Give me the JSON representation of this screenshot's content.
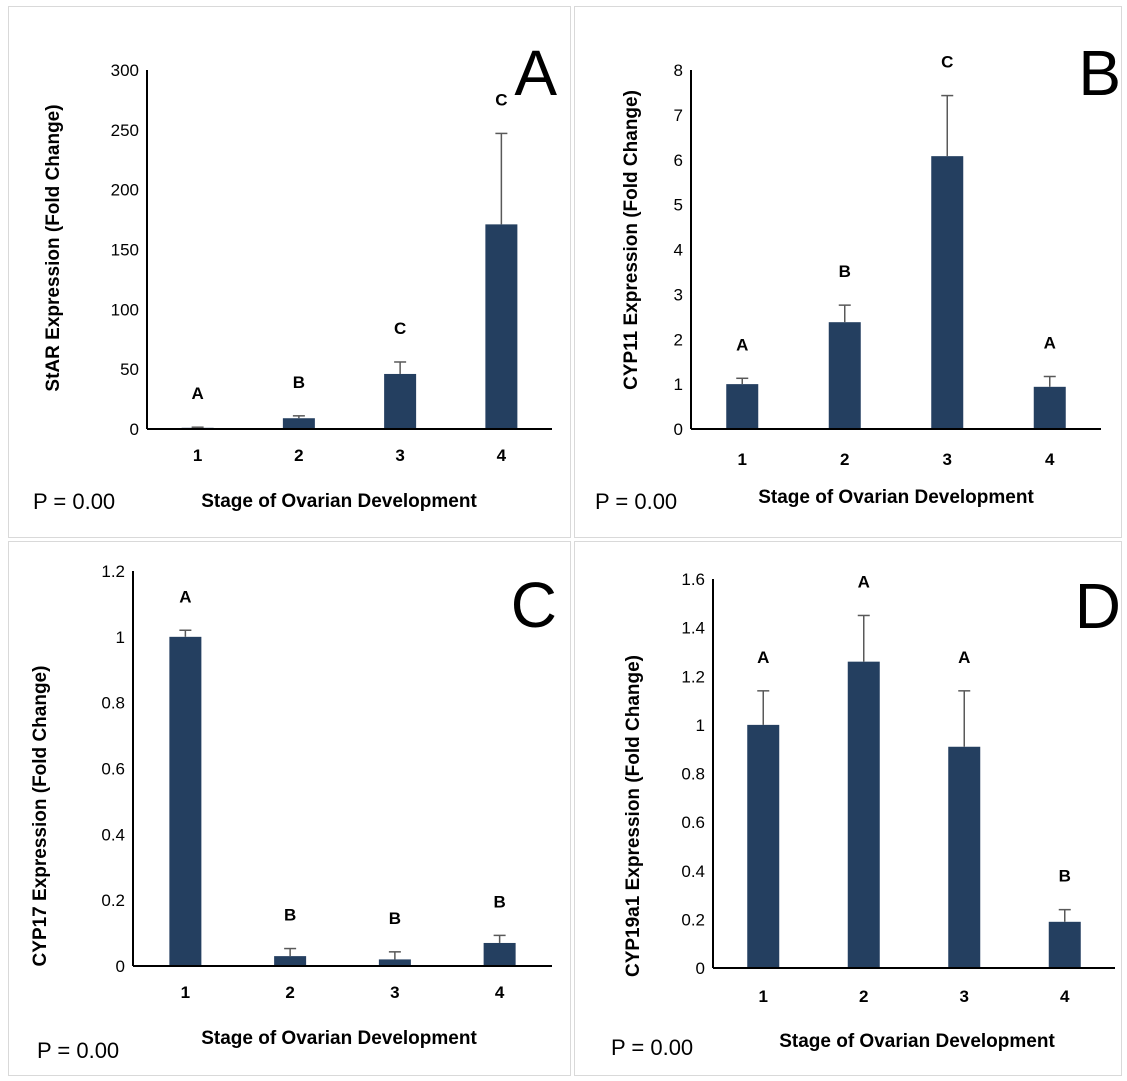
{
  "colors": {
    "bar": "#243f60",
    "axis": "#000000",
    "error": "#595959"
  },
  "chart_data": [
    {
      "type": "bar",
      "panel": "A",
      "categories": [
        "1",
        "2",
        "3",
        "4"
      ],
      "values": [
        1,
        9,
        46,
        171
      ],
      "error": [
        0.5,
        2,
        10,
        76
      ],
      "significance": [
        "A",
        "B",
        "C",
        "C"
      ],
      "ylabel": "StAR Expression (Fold Change)",
      "xlabel": "Stage of Ovarian Development",
      "p_value": "P = 0.00",
      "ylim": [
        0,
        300
      ],
      "yticks": [
        0,
        50,
        100,
        150,
        200,
        250,
        300
      ],
      "ytick_labels": [
        "0",
        "50",
        "100",
        "150",
        "200",
        "250",
        "300"
      ]
    },
    {
      "type": "bar",
      "panel": "B",
      "categories": [
        "1",
        "2",
        "3",
        "4"
      ],
      "values": [
        1.0,
        2.38,
        6.08,
        0.94
      ],
      "error": [
        0.13,
        0.38,
        1.35,
        0.23
      ],
      "significance": [
        "A",
        "B",
        "C",
        "A"
      ],
      "ylabel": "CYP11 Expression (Fold Change)",
      "xlabel": "Stage of Ovarian Development",
      "p_value": "P = 0.00",
      "ylim": [
        0,
        8
      ],
      "yticks": [
        0,
        1,
        2,
        3,
        4,
        5,
        6,
        7,
        8
      ],
      "ytick_labels": [
        "0",
        "1",
        "2",
        "3",
        "4",
        "5",
        "6",
        "7",
        "8"
      ]
    },
    {
      "type": "bar",
      "panel": "C",
      "categories": [
        "1",
        "2",
        "3",
        "4"
      ],
      "values": [
        1.0,
        0.03,
        0.02,
        0.07
      ],
      "error": [
        0.02,
        0.023,
        0.023,
        0.023
      ],
      "significance": [
        "A",
        "B",
        "B",
        "B"
      ],
      "ylabel": "CYP17 Expression (Fold Change)",
      "xlabel": "Stage of Ovarian Development",
      "p_value": "P = 0.00",
      "ylim": [
        0,
        1.2
      ],
      "yticks": [
        0,
        0.2,
        0.4,
        0.6,
        0.8,
        1.0,
        1.2
      ],
      "ytick_labels": [
        "0",
        "0.2",
        "0.4",
        "0.6",
        "0.8",
        "1",
        "1.2"
      ]
    },
    {
      "type": "bar",
      "panel": "D",
      "categories": [
        "1",
        "2",
        "3",
        "4"
      ],
      "values": [
        1.0,
        1.26,
        0.91,
        0.19
      ],
      "error": [
        0.14,
        0.19,
        0.23,
        0.05
      ],
      "significance": [
        "A",
        "A",
        "A",
        "B"
      ],
      "ylabel": "CYP19a1 Expression (Fold Change)",
      "xlabel": "Stage of Ovarian Development",
      "p_value": "P = 0.00",
      "ylim": [
        0,
        1.6
      ],
      "yticks": [
        0,
        0.2,
        0.4,
        0.6,
        0.8,
        1.0,
        1.2,
        1.4,
        1.6
      ],
      "ytick_labels": [
        "0",
        "0.2",
        "0.4",
        "0.6",
        "0.8",
        "1",
        "1.2",
        "1.4",
        "1.6"
      ]
    }
  ]
}
